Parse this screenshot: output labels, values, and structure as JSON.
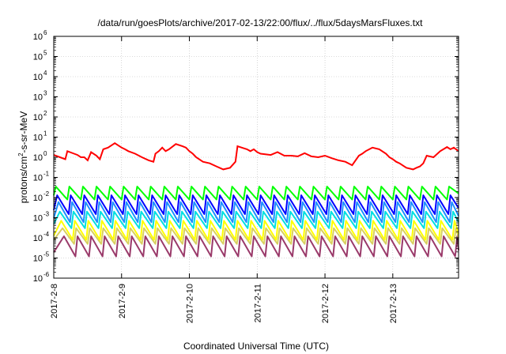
{
  "chart_data": {
    "type": "line",
    "title": "/data/run/goesPlots/archive/2017-02-13/22:00/flux/../flux/5daysMarsFluxes.txt",
    "xlabel": "Coordinated Universal Time (UTC)",
    "ylabel": {
      "base": "protons/cm",
      "sup": "2",
      "rest": "-s-sr-MeV"
    },
    "yscale": "log",
    "ylim_exponent": [
      -6,
      6
    ],
    "ytick_exponents": [
      "-6",
      "-5",
      "-4",
      "-3",
      "-2",
      "-1",
      "0",
      "1",
      "2",
      "3",
      "4",
      "5",
      "6"
    ],
    "ytick_base": "10",
    "x_domain_days": [
      0,
      5.97
    ],
    "x_tick_labels": [
      "2017-2-8",
      "2017-2-9",
      "2017-2-10",
      "2017-2-11",
      "2017-2-12",
      "2017-2-13"
    ],
    "grid": true,
    "colors": {
      "red": "#ff0000",
      "green": "#00ff00",
      "blue": "#0000ff",
      "dodgerblue": "#1e90ff",
      "cyan": "#00e0e0",
      "yellow": "#ffff00",
      "khaki": "#d8d060",
      "purple": "#9a3a6a",
      "grid": "#b8b8b8"
    },
    "series": [
      {
        "color_key": "red",
        "x": [
          0.0,
          0.17,
          0.2,
          0.3,
          0.35,
          0.4,
          0.45,
          0.5,
          0.55,
          0.63,
          0.68,
          0.73,
          0.8,
          0.9,
          1.0,
          1.05,
          1.1,
          1.2,
          1.3,
          1.4,
          1.47,
          1.5,
          1.55,
          1.6,
          1.65,
          1.7,
          1.8,
          1.9,
          1.95,
          2.0,
          2.05,
          2.1,
          2.2,
          2.3,
          2.4,
          2.5,
          2.6,
          2.68,
          2.71,
          2.8,
          2.85,
          2.9,
          2.95,
          3.0,
          3.05,
          3.2,
          3.3,
          3.4,
          3.5,
          3.6,
          3.7,
          3.8,
          3.9,
          4.0,
          4.1,
          4.2,
          4.3,
          4.4,
          4.5,
          4.55,
          4.6,
          4.7,
          4.8,
          4.9,
          4.95,
          5.0,
          5.05,
          5.1,
          5.2,
          5.3,
          5.35,
          5.4,
          5.45,
          5.5,
          5.6,
          5.7,
          5.8,
          5.85,
          5.9,
          5.97
        ],
        "y": [
          1.3,
          0.8,
          2.0,
          1.5,
          1.3,
          1.0,
          1.0,
          0.7,
          1.8,
          1.2,
          0.8,
          2.5,
          3.0,
          5.0,
          3.0,
          2.5,
          2.0,
          1.5,
          1.0,
          0.7,
          0.6,
          1.5,
          2.0,
          3.0,
          2.0,
          2.5,
          4.5,
          3.5,
          3.0,
          2.0,
          1.5,
          1.0,
          0.6,
          0.5,
          0.35,
          0.25,
          0.3,
          0.6,
          3.5,
          2.8,
          2.5,
          2.0,
          2.5,
          1.8,
          1.5,
          1.3,
          1.8,
          1.2,
          1.2,
          1.1,
          1.6,
          1.1,
          1.0,
          1.2,
          0.9,
          0.7,
          0.6,
          0.4,
          1.2,
          1.5,
          2.0,
          3.0,
          2.5,
          1.5,
          1.0,
          0.8,
          0.6,
          0.5,
          0.3,
          0.25,
          0.3,
          0.35,
          0.5,
          1.2,
          1.0,
          2.0,
          3.2,
          2.5,
          3.0,
          2.0
        ]
      }
    ],
    "sawtooth_series": [
      {
        "color_key": "green",
        "low": 0.008,
        "high": 0.035,
        "phase": 0.0
      },
      {
        "color_key": "blue",
        "low": 0.0015,
        "high": 0.013,
        "phase": 0.02
      },
      {
        "color_key": "dodgerblue",
        "low": 0.0006,
        "high": 0.006,
        "phase": 0.04
      },
      {
        "color_key": "cyan",
        "low": 0.0003,
        "high": 0.002,
        "phase": 0.06
      },
      {
        "color_key": "yellow",
        "low": 8e-05,
        "high": 0.0007,
        "phase": 0.08
      },
      {
        "color_key": "khaki",
        "low": 5e-05,
        "high": 0.0003,
        "phase": 0.1
      },
      {
        "color_key": "purple",
        "low": 1.2e-05,
        "high": 0.00012,
        "phase": 0.12
      }
    ],
    "sawtooth_period_days": 0.2
  }
}
